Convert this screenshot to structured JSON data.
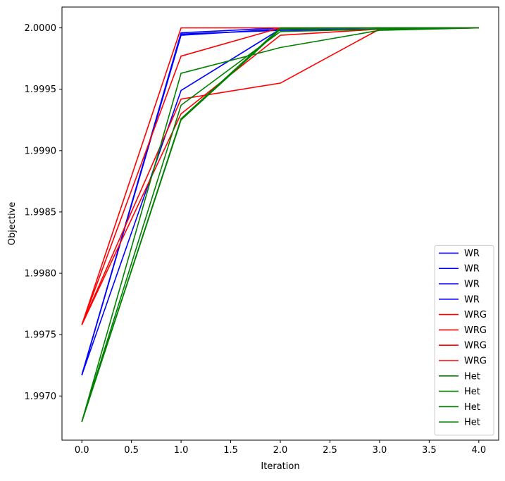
{
  "chart_data": {
    "type": "line",
    "title": "",
    "xlabel": "Iteration",
    "ylabel": "Objective",
    "xlim": [
      -0.2,
      4.2
    ],
    "ylim": [
      1.99664,
      2.00017
    ],
    "xticks": [
      0.0,
      0.5,
      1.0,
      1.5,
      2.0,
      2.5,
      3.0,
      3.5,
      4.0
    ],
    "xtick_labels": [
      "0.0",
      "0.5",
      "1.0",
      "1.5",
      "2.0",
      "2.5",
      "3.0",
      "3.5",
      "4.0"
    ],
    "yticks": [
      1.997,
      1.9975,
      1.998,
      1.9985,
      1.999,
      1.9995,
      2.0
    ],
    "ytick_labels": [
      "1.9970",
      "1.9975",
      "1.9980",
      "1.9985",
      "1.9990",
      "1.9995",
      "2.0000"
    ],
    "grid": false,
    "legend_position": "lower right",
    "x": [
      0,
      1,
      2,
      3,
      4
    ],
    "series": [
      {
        "name": "WR",
        "color": "#0000ff",
        "values": [
          1.99717,
          1.99996,
          2.0,
          2.0,
          2.0
        ]
      },
      {
        "name": "WR",
        "color": "#0000ff",
        "values": [
          1.99717,
          1.99995,
          1.99998,
          1.99999,
          2.0
        ]
      },
      {
        "name": "WR",
        "color": "#0000ff",
        "values": [
          1.99717,
          1.99994,
          1.99999,
          2.0,
          2.0
        ]
      },
      {
        "name": "WR",
        "color": "#0000ff",
        "values": [
          1.99717,
          1.99949,
          1.99999,
          2.0,
          2.0
        ]
      },
      {
        "name": "WRG",
        "color": "#ff0000",
        "values": [
          1.99758,
          2.0,
          2.0,
          2.0,
          2.0
        ]
      },
      {
        "name": "WRG",
        "color": "#ff0000",
        "values": [
          1.99758,
          1.99977,
          2.0,
          2.0,
          2.0
        ]
      },
      {
        "name": "WRG",
        "color": "#ff0000",
        "values": [
          1.99758,
          1.99942,
          1.99955,
          1.99999,
          2.0
        ]
      },
      {
        "name": "WRG",
        "color": "#ff0000",
        "values": [
          1.99758,
          1.9993,
          1.99994,
          1.99999,
          2.0
        ]
      },
      {
        "name": "Het",
        "color": "#008000",
        "values": [
          1.99679,
          1.99963,
          1.99984,
          1.99998,
          2.0
        ]
      },
      {
        "name": "Het",
        "color": "#008000",
        "values": [
          1.99679,
          1.99937,
          1.99997,
          1.99999,
          2.0
        ]
      },
      {
        "name": "Het",
        "color": "#008000",
        "values": [
          1.99679,
          1.99926,
          2.0,
          2.0,
          2.0
        ]
      },
      {
        "name": "Het",
        "color": "#008000",
        "values": [
          1.99679,
          1.99925,
          1.99999,
          2.0,
          2.0
        ]
      }
    ]
  }
}
